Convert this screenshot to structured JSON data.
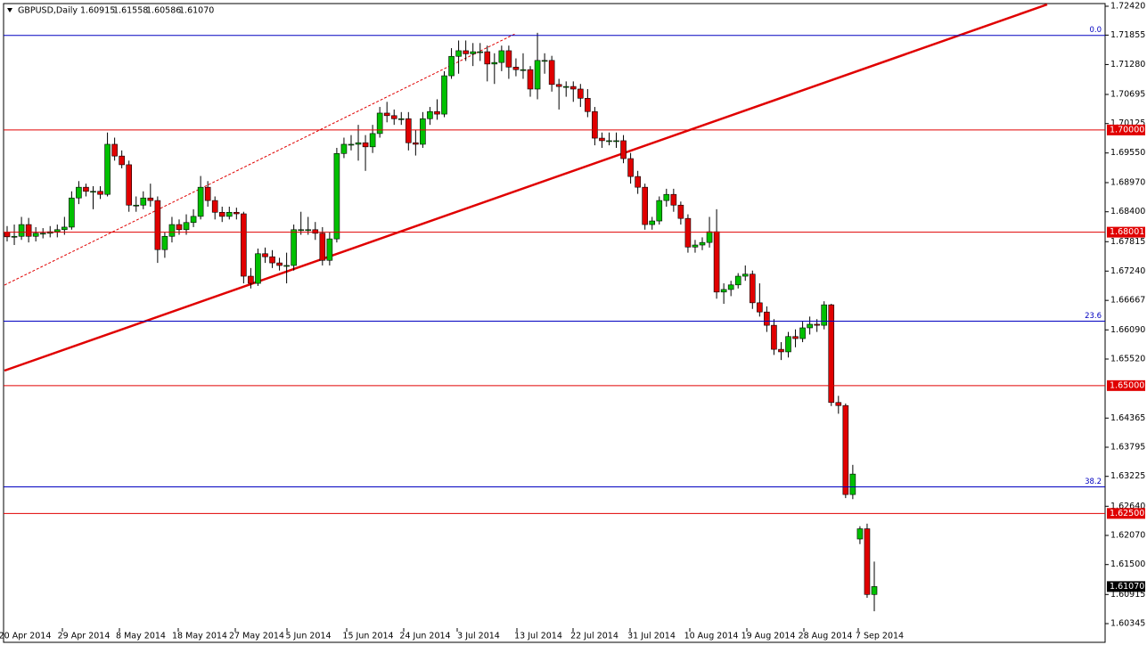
{
  "chart_data": {
    "type": "candlestick",
    "title": "GBPUSD,Daily",
    "header_values": [
      {
        "value": 1.60915,
        "label": "1.60915"
      },
      {
        "value": 1.61558,
        "label": "1.61558"
      },
      {
        "value": 1.60586,
        "label": "1.60586"
      },
      {
        "value": 1.6107,
        "label": "1.61070"
      }
    ],
    "x_labels": [
      "20 Apr 2014",
      "29 Apr 2014",
      "8 May 2014",
      "18 May 2014",
      "27 May 2014",
      "5 Jun 2014",
      "15 Jun 2014",
      "24 Jun 2014",
      "3 Jul 2014",
      "13 Jul 2014",
      "22 Jul 2014",
      "31 Jul 2014",
      "10 Aug 2014",
      "19 Aug 2014",
      "28 Aug 2014",
      "7 Sep 2014"
    ],
    "ylim": [
      1.60345,
      1.7242
    ],
    "yticks": [
      {
        "value": 1.7242,
        "label": "1.72420"
      },
      1.71855,
      {
        "value": 1.7128,
        "label": "1.71280"
      },
      1.70695,
      1.70125,
      {
        "value": 1.6955,
        "label": "1.69550"
      },
      {
        "value": 1.6897,
        "label": "1.68970"
      },
      {
        "value": 1.684,
        "label": "1.68400"
      },
      1.67815,
      {
        "value": 1.6724,
        "label": "1.67240"
      },
      1.66667,
      {
        "value": 1.6609,
        "label": "1.66090"
      },
      {
        "value": 1.6552,
        "label": "1.65520"
      },
      1.64365,
      1.63795,
      1.63225,
      {
        "value": 1.6264,
        "label": "1.62640"
      },
      {
        "value": 1.6207,
        "label": "1.62070"
      },
      {
        "value": 1.615,
        "label": "1.61500"
      },
      1.60915,
      1.60345
    ],
    "levels": [
      {
        "value": 1.7,
        "label": "1.70000"
      },
      {
        "value": 1.68001,
        "label": "1.68001"
      },
      {
        "value": 1.65,
        "label": "1.65000"
      },
      {
        "value": 1.625,
        "label": "1.62500"
      }
    ],
    "fib_levels": [
      {
        "value": 1.7185,
        "label": "0.0"
      },
      {
        "value": 1.6626,
        "label": "23.6"
      },
      {
        "value": 1.6302,
        "label": "38.2"
      }
    ],
    "current_price": {
      "value": 1.6107,
      "label": "1.61070"
    },
    "up_color": "#00c000",
    "down_color": "#e00000",
    "level_color": "#e00000",
    "fib_color": "#0000c0",
    "ohlc": [
      [
        1.68,
        1.6812,
        1.6782,
        1.6791
      ],
      [
        1.6791,
        1.6815,
        1.6775,
        1.6792
      ],
      [
        1.6792,
        1.683,
        1.6785,
        1.6815
      ],
      [
        1.6815,
        1.6828,
        1.678,
        1.6792
      ],
      [
        1.6792,
        1.681,
        1.6782,
        1.6798
      ],
      [
        1.6798,
        1.6808,
        1.6788,
        1.6798
      ],
      [
        1.6798,
        1.6812,
        1.679,
        1.6801
      ],
      [
        1.6801,
        1.6815,
        1.679,
        1.6805
      ],
      [
        1.6805,
        1.683,
        1.6795,
        1.681
      ],
      [
        1.681,
        1.688,
        1.6805,
        1.6867
      ],
      [
        1.6867,
        1.69,
        1.6855,
        1.6888
      ],
      [
        1.6888,
        1.6895,
        1.687,
        1.688
      ],
      [
        1.688,
        1.689,
        1.6845,
        1.688
      ],
      [
        1.688,
        1.689,
        1.6865,
        1.6874
      ],
      [
        1.6874,
        1.6995,
        1.687,
        1.6972
      ],
      [
        1.6972,
        1.6985,
        1.694,
        1.6949
      ],
      [
        1.6949,
        1.696,
        1.6925,
        1.6932
      ],
      [
        1.6932,
        1.694,
        1.684,
        1.6853
      ],
      [
        1.6853,
        1.687,
        1.684,
        1.6853
      ],
      [
        1.6853,
        1.688,
        1.6845,
        1.6867
      ],
      [
        1.6867,
        1.6895,
        1.685,
        1.6862
      ],
      [
        1.6862,
        1.687,
        1.674,
        1.6766
      ],
      [
        1.6766,
        1.68,
        1.675,
        1.6792
      ],
      [
        1.6792,
        1.683,
        1.678,
        1.6815
      ],
      [
        1.6815,
        1.6825,
        1.6795,
        1.6805
      ],
      [
        1.6805,
        1.6835,
        1.6795,
        1.6819
      ],
      [
        1.6819,
        1.6845,
        1.681,
        1.6831
      ],
      [
        1.6831,
        1.691,
        1.6825,
        1.6888
      ],
      [
        1.6888,
        1.69,
        1.685,
        1.6862
      ],
      [
        1.6862,
        1.687,
        1.6825,
        1.6839
      ],
      [
        1.6839,
        1.685,
        1.682,
        1.6831
      ],
      [
        1.6831,
        1.685,
        1.6825,
        1.6839
      ],
      [
        1.6839,
        1.6848,
        1.6825,
        1.6836
      ],
      [
        1.6836,
        1.684,
        1.67,
        1.6714
      ],
      [
        1.6714,
        1.673,
        1.669,
        1.67
      ],
      [
        1.67,
        1.6768,
        1.6695,
        1.6758
      ],
      [
        1.6758,
        1.677,
        1.674,
        1.6752
      ],
      [
        1.6752,
        1.6765,
        1.673,
        1.674
      ],
      [
        1.674,
        1.675,
        1.6725,
        1.6735
      ],
      [
        1.6735,
        1.676,
        1.67,
        1.6735
      ],
      [
        1.6735,
        1.6815,
        1.6725,
        1.6805
      ],
      [
        1.6805,
        1.684,
        1.6795,
        1.6805
      ],
      [
        1.6805,
        1.683,
        1.6795,
        1.6805
      ],
      [
        1.6805,
        1.682,
        1.6785,
        1.6798
      ],
      [
        1.6798,
        1.681,
        1.6735,
        1.6745
      ],
      [
        1.6745,
        1.68,
        1.6735,
        1.6787
      ],
      [
        1.6787,
        1.6965,
        1.678,
        1.6954
      ],
      [
        1.6954,
        1.6985,
        1.6945,
        1.6972
      ],
      [
        1.6972,
        1.699,
        1.696,
        1.6972
      ],
      [
        1.6972,
        1.701,
        1.694,
        1.6975
      ],
      [
        1.6975,
        1.699,
        1.692,
        1.6967
      ],
      [
        1.6967,
        1.701,
        1.6955,
        1.6993
      ],
      [
        1.6993,
        1.7045,
        1.6985,
        1.7033
      ],
      [
        1.7033,
        1.7055,
        1.7015,
        1.7028
      ],
      [
        1.7028,
        1.704,
        1.701,
        1.7022
      ],
      [
        1.7022,
        1.7035,
        1.701,
        1.7022
      ],
      [
        1.7022,
        1.7035,
        1.696,
        1.6975
      ],
      [
        1.6975,
        1.7,
        1.695,
        1.6972
      ],
      [
        1.6972,
        1.7035,
        1.6965,
        1.7022
      ],
      [
        1.7022,
        1.7045,
        1.701,
        1.7036
      ],
      [
        1.7036,
        1.706,
        1.702,
        1.7031
      ],
      [
        1.7031,
        1.7115,
        1.7025,
        1.7106
      ],
      [
        1.7106,
        1.716,
        1.71,
        1.7144
      ],
      [
        1.7144,
        1.7175,
        1.711,
        1.7155
      ],
      [
        1.7155,
        1.7175,
        1.7135,
        1.7149
      ],
      [
        1.7149,
        1.717,
        1.7125,
        1.7153
      ],
      [
        1.7153,
        1.717,
        1.7135,
        1.7153
      ],
      [
        1.7153,
        1.7165,
        1.7095,
        1.7129
      ],
      [
        1.7129,
        1.715,
        1.709,
        1.7132
      ],
      [
        1.7132,
        1.7165,
        1.7115,
        1.7155
      ],
      [
        1.7155,
        1.7165,
        1.71,
        1.7123
      ],
      [
        1.7123,
        1.714,
        1.7105,
        1.7118
      ],
      [
        1.7118,
        1.715,
        1.71,
        1.7118
      ],
      [
        1.7118,
        1.7125,
        1.7065,
        1.708
      ],
      [
        1.708,
        1.719,
        1.706,
        1.7136
      ],
      [
        1.7136,
        1.715,
        1.711,
        1.7136
      ],
      [
        1.7136,
        1.7145,
        1.7075,
        1.7089
      ],
      [
        1.7089,
        1.71,
        1.704,
        1.7085
      ],
      [
        1.7085,
        1.7095,
        1.7065,
        1.7085
      ],
      [
        1.7085,
        1.7095,
        1.7055,
        1.708
      ],
      [
        1.708,
        1.709,
        1.7045,
        1.7062
      ],
      [
        1.7062,
        1.708,
        1.7025,
        1.7036
      ],
      [
        1.7036,
        1.7045,
        1.697,
        1.6984
      ],
      [
        1.6984,
        1.6995,
        1.6965,
        1.6979
      ],
      [
        1.6979,
        1.6995,
        1.697,
        1.6979
      ],
      [
        1.6979,
        1.6995,
        1.6965,
        1.6979
      ],
      [
        1.6979,
        1.699,
        1.6935,
        1.6944
      ],
      [
        1.6944,
        1.6955,
        1.6895,
        1.6909
      ],
      [
        1.6909,
        1.692,
        1.6875,
        1.6888
      ],
      [
        1.6888,
        1.6895,
        1.6805,
        1.6815
      ],
      [
        1.6815,
        1.683,
        1.6805,
        1.6822
      ],
      [
        1.6822,
        1.687,
        1.6815,
        1.6862
      ],
      [
        1.6862,
        1.6885,
        1.685,
        1.6874
      ],
      [
        1.6874,
        1.6885,
        1.684,
        1.6853
      ],
      [
        1.6853,
        1.686,
        1.6815,
        1.6827
      ],
      [
        1.6827,
        1.6835,
        1.676,
        1.6771
      ],
      [
        1.6771,
        1.6785,
        1.676,
        1.6775
      ],
      [
        1.6775,
        1.679,
        1.6765,
        1.678
      ],
      [
        1.678,
        1.683,
        1.677,
        1.6801
      ],
      [
        1.6801,
        1.6845,
        1.667,
        1.6683
      ],
      [
        1.6683,
        1.67,
        1.666,
        1.6688
      ],
      [
        1.6688,
        1.6705,
        1.6675,
        1.6697
      ],
      [
        1.6697,
        1.672,
        1.669,
        1.6714
      ],
      [
        1.6714,
        1.6735,
        1.6705,
        1.6718
      ],
      [
        1.6718,
        1.6725,
        1.665,
        1.6662
      ],
      [
        1.6662,
        1.67,
        1.6635,
        1.6644
      ],
      [
        1.6644,
        1.6655,
        1.6605,
        1.6618
      ],
      [
        1.6618,
        1.663,
        1.656,
        1.6571
      ],
      [
        1.6571,
        1.6585,
        1.655,
        1.6566
      ],
      [
        1.6566,
        1.6605,
        1.6555,
        1.6596
      ],
      [
        1.6596,
        1.661,
        1.6575,
        1.6592
      ],
      [
        1.6592,
        1.6625,
        1.6585,
        1.6613
      ],
      [
        1.6613,
        1.6635,
        1.66,
        1.662
      ],
      [
        1.662,
        1.663,
        1.6605,
        1.6618
      ],
      [
        1.6618,
        1.6665,
        1.661,
        1.6658
      ],
      [
        1.6658,
        1.666,
        1.646,
        1.6467
      ],
      [
        1.6467,
        1.648,
        1.6445,
        1.6461
      ],
      [
        1.6461,
        1.6465,
        1.628,
        1.6287
      ],
      [
        1.6287,
        1.6345,
        1.6278,
        1.6327
      ],
      [
        1.62,
        1.6225,
        1.619,
        1.622
      ],
      [
        1.622,
        1.623,
        1.6085,
        1.60915
      ],
      [
        1.60915,
        1.61558,
        1.60586,
        1.6107
      ]
    ]
  }
}
